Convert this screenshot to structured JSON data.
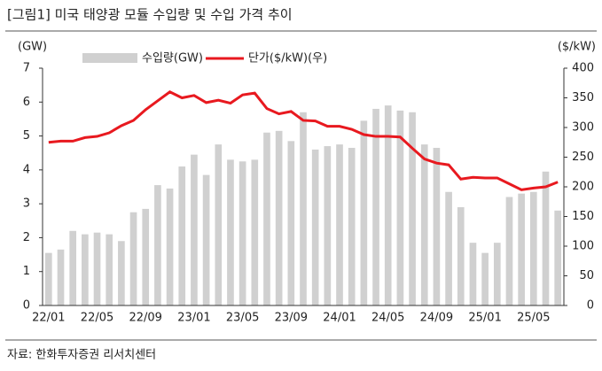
{
  "chart_data": {
    "type": "bar_line",
    "title": "[그림1]  미국 태양광 모듈 수입량 및 수입 가격 추이",
    "source": "자료: 한화투자증권 리서치센터",
    "y_label": "(GW)",
    "y2_label": "($/kW)",
    "categories": [
      "22/01",
      null,
      null,
      null,
      "22/05",
      null,
      null,
      null,
      "22/09",
      null,
      null,
      null,
      "23/01",
      null,
      null,
      null,
      "23/05",
      null,
      null,
      null,
      "23/09",
      null,
      null,
      null,
      "24/01",
      null,
      null,
      null,
      "24/05",
      null,
      null,
      null,
      "24/09",
      null,
      null,
      null,
      "25/01",
      null,
      null,
      null,
      "25/05",
      null,
      null
    ],
    "series": [
      {
        "name": "수입량(GW)",
        "color": "#d0d0d0",
        "values": [
          1.55,
          1.65,
          2.2,
          2.1,
          2.15,
          2.1,
          1.9,
          2.75,
          2.85,
          3.55,
          3.45,
          4.1,
          4.45,
          3.85,
          4.75,
          4.3,
          4.25,
          4.3,
          5.1,
          5.15,
          4.85,
          5.7,
          4.6,
          4.7,
          4.75,
          4.65,
          5.45,
          5.8,
          5.9,
          5.75,
          5.7,
          4.75,
          4.65,
          3.35,
          2.9,
          1.85,
          1.55,
          1.85,
          3.2,
          3.3,
          3.35,
          3.95,
          2.8
        ]
      },
      {
        "name": "단가($/kW)(우)",
        "color": "#e8191f",
        "axis": "y2",
        "values": [
          275,
          277,
          277,
          283,
          285,
          291,
          303,
          312,
          330,
          345,
          360,
          350,
          354,
          342,
          346,
          341,
          355,
          358,
          332,
          323,
          327,
          312,
          311,
          302,
          302,
          297,
          288,
          285,
          285,
          284,
          265,
          247,
          240,
          237,
          213,
          216,
          215,
          215,
          205,
          195,
          198,
          200,
          208
        ]
      }
    ],
    "ylim": [
      0,
      7
    ],
    "yticks": [
      0,
      1,
      2,
      3,
      4,
      5,
      6,
      7
    ],
    "y2lim": [
      0,
      400
    ],
    "y2ticks": [
      0,
      50,
      100,
      150,
      200,
      250,
      300,
      350,
      400
    ]
  }
}
